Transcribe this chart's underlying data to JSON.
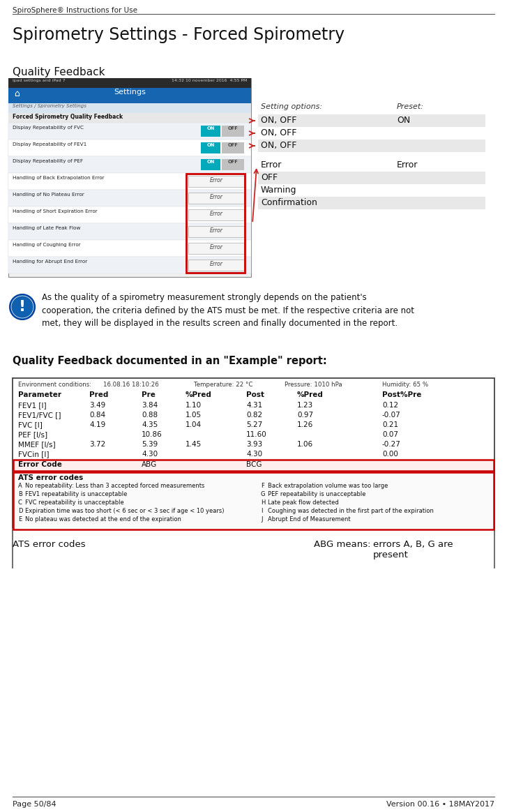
{
  "header_text": "SpiroSphere® Instructions for Use",
  "page_title": "Spirometry Settings - Forced Spirometry",
  "section1_title": "Quality Feedback",
  "setting_options_label": "Setting options:",
  "preset_label": "Preset:",
  "setting_rows": [
    {
      "options": "ON, OFF",
      "preset": "ON",
      "bg": "#e8e8e8"
    },
    {
      "options": "ON, OFF",
      "preset": "",
      "bg": "#ffffff"
    },
    {
      "options": "ON, OFF",
      "preset": "",
      "bg": "#e8e8e8"
    }
  ],
  "error_rows": [
    {
      "label": "Error",
      "preset": "Error",
      "bg": "#ffffff"
    },
    {
      "label": "OFF",
      "preset": "",
      "bg": "#e8e8e8"
    },
    {
      "label": "Warning",
      "preset": "",
      "bg": "#ffffff"
    },
    {
      "label": "Confirmation",
      "preset": "",
      "bg": "#e8e8e8"
    }
  ],
  "info_text": "As the quality of a spirometry measurement strongly depends on the patient's\ncooperation, the criteria defined by the ATS must be met. If the respective criteria are not\nmet, they will be displayed in the results screen and finally documented in the report.",
  "section2_title": "Quality Feedback documented in an \"Example\" report:",
  "ats_label": "ATS error codes",
  "abg_label": "ABG means:",
  "abg_value": "errors A, B, G are\npresent",
  "footer_left": "Page 50/84",
  "footer_right": "Version 00.16 • 18MAY2017",
  "env_conditions": "Environment conditions:",
  "env_date": "16.08.16 18:10:26",
  "env_temp": "Temperature: 22 °C",
  "env_pressure": "Pressure: 1010 hPa",
  "env_humidity": "Humidity: 65 %",
  "table_cols": [
    "Parameter",
    "Pred",
    "Pre",
    "%Pred",
    "Post",
    "%Pred",
    "Post%Pre"
  ],
  "table_rows": [
    [
      "FEV1 [l]",
      "3.49",
      "3.84",
      "1.10",
      "4.31",
      "1.23",
      "0.12"
    ],
    [
      "FEV1/FVC []",
      "0.84",
      "0.88",
      "1.05",
      "0.82",
      "0.97",
      "-0.07"
    ],
    [
      "FVC [l]",
      "4.19",
      "4.35",
      "1.04",
      "5.27",
      "1.26",
      "0.21"
    ],
    [
      "PEF [l/s]",
      "",
      "10.86",
      "",
      "11.60",
      "",
      "0.07"
    ],
    [
      "MMEF [l/s]",
      "3.72",
      "5.39",
      "1.45",
      "3.93",
      "1.06",
      "-0.27"
    ],
    [
      "FVCin [l]",
      "",
      "4.30",
      "",
      "4.30",
      "",
      "0.00"
    ]
  ],
  "error_row": [
    "Error Code",
    "",
    "ABG",
    "",
    "BCG",
    "",
    ""
  ],
  "ats_codes_left": [
    [
      "A",
      "No repeatability: Less than 3 accepted forced measurements"
    ],
    [
      "B",
      "FEV1 repeatability is unacceptable"
    ],
    [
      "C",
      "FVC repeatability is unacceptable"
    ],
    [
      "D",
      "Expiration time was too short (< 6 sec or < 3 sec if age < 10 years)"
    ],
    [
      "E",
      "No plateau was detected at the end of the expiration"
    ]
  ],
  "ats_codes_right": [
    [
      "F",
      "Back extrapolation volume was too large"
    ],
    [
      "G",
      "PEF repeatability is unacceptable"
    ],
    [
      "H",
      "Late peak flow detected"
    ],
    [
      "I",
      "Coughing was detected in the first part of the expiration"
    ],
    [
      "J",
      "Abrupt End of Measurement"
    ]
  ],
  "bg_color": "#ffffff",
  "blue_color": "#1565b0",
  "red_border_color": "#cc0000",
  "screen_row_labels": [
    "Display Repeatability of FVC",
    "Display Repeatability of FEV1",
    "Display Repeatability of PEF",
    "Handling of Back Extrapolation Error",
    "Handling of No Plateau Error",
    "Handling of Short Expiration Error",
    "Handling of Late Peak Flow",
    "Handling of Coughing Error",
    "Handling for Abrupt End Error"
  ]
}
